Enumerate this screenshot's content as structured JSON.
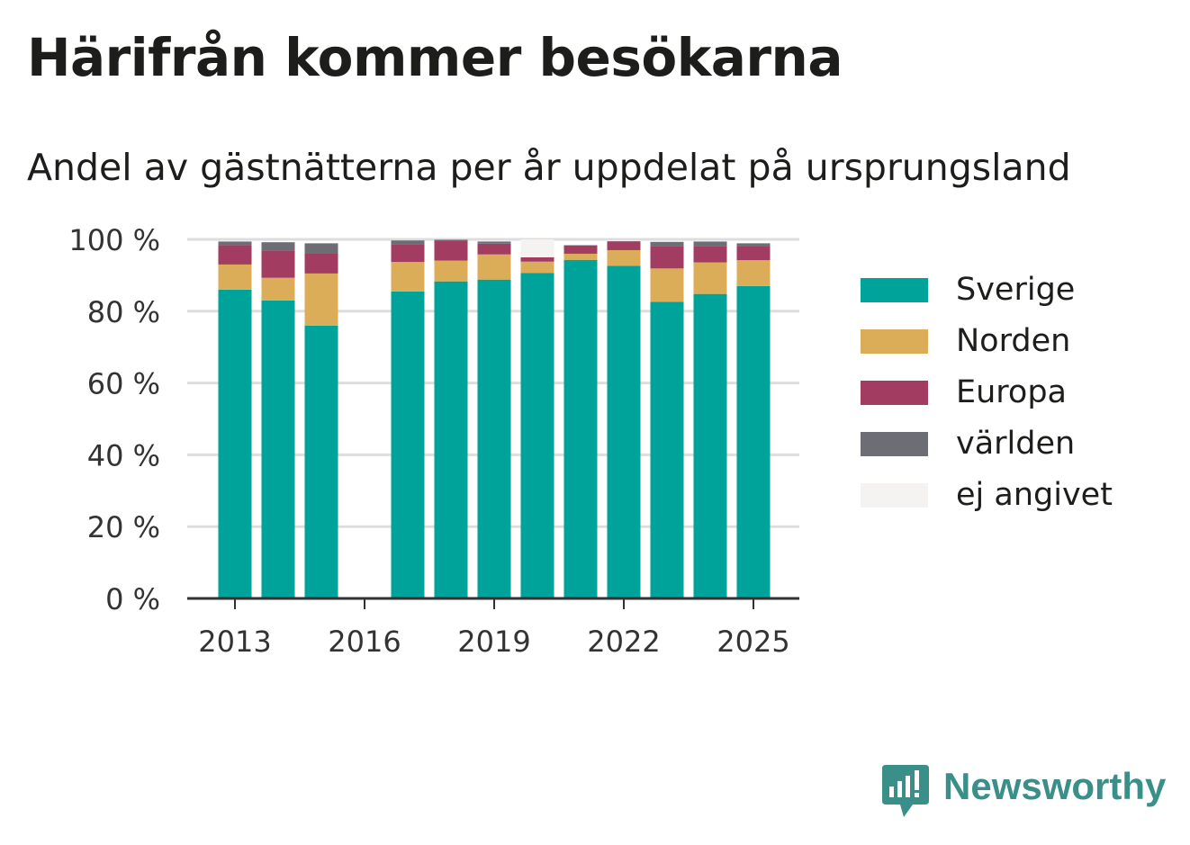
{
  "title": "Härifrån kommer besökarna",
  "subtitle": "Andel av gästnätterna per år uppdelat på ursprungsland",
  "logo": {
    "text": "Newsworthy",
    "color": "#3a8f88",
    "icon": "chart-bubble-icon"
  },
  "chart_data": {
    "type": "bar",
    "stacked": true,
    "categories": [
      "2013",
      "2014",
      "2015",
      "2016",
      "2017",
      "2018",
      "2019",
      "2020",
      "2021",
      "2022",
      "2023",
      "2024",
      "2025"
    ],
    "x_tick_labels": [
      "2013",
      "2016",
      "2019",
      "2022",
      "2025"
    ],
    "y_tick_labels": [
      "0 %",
      "20 %",
      "40 %",
      "60 %",
      "80 %",
      "100 %"
    ],
    "ylim": [
      0,
      100
    ],
    "grid": true,
    "legend_position": "right",
    "series": [
      {
        "name": "Sverige",
        "color": "#00a39a",
        "values": [
          86,
          83,
          76,
          null,
          85.5,
          88.3,
          88.8,
          90.6,
          94.3,
          92.6,
          82.6,
          84.8,
          87
        ]
      },
      {
        "name": "Norden",
        "color": "#dbad58",
        "values": [
          7,
          6.3,
          14.5,
          null,
          8.2,
          5.8,
          7,
          3.2,
          1.7,
          4.4,
          9.3,
          8.8,
          7.2
        ]
      },
      {
        "name": "Europa",
        "color": "#a23c61",
        "values": [
          5.4,
          7.6,
          5.6,
          null,
          5,
          5.4,
          3,
          1.2,
          2.3,
          2.4,
          6.3,
          4.6,
          3.9
        ]
      },
      {
        "name": "världen",
        "color": "#6d6d75",
        "values": [
          1,
          2.3,
          2.8,
          null,
          1,
          0.4,
          0.6,
          0,
          0.1,
          0.1,
          1.1,
          1.2,
          0.8
        ]
      },
      {
        "name": "ej angivet",
        "color": "#f4f3f1",
        "values": [
          0,
          0,
          0,
          null,
          0,
          0,
          0,
          5,
          0,
          0,
          0,
          0,
          0
        ]
      }
    ]
  }
}
